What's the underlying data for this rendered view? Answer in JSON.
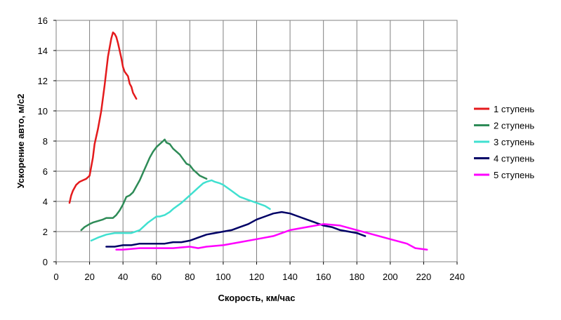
{
  "chart_data": {
    "type": "line",
    "xlabel": "Скорость, км/час",
    "ylabel": "Ускорение авто, м/с2",
    "xlim": [
      0,
      240
    ],
    "ylim": [
      0,
      16
    ],
    "xticks": [
      0,
      20,
      40,
      60,
      80,
      100,
      120,
      140,
      160,
      180,
      200,
      220,
      240
    ],
    "yticks": [
      0,
      2,
      4,
      6,
      8,
      10,
      12,
      14,
      16
    ],
    "grid": true,
    "legend_position": "right",
    "series": [
      {
        "name": "1 ступень",
        "color": "#e41a1c",
        "x": [
          8,
          9,
          10,
          12,
          14,
          16,
          18,
          20,
          22,
          23,
          25,
          27,
          29,
          31,
          33,
          34,
          35,
          36,
          37,
          38,
          39,
          40,
          41,
          43,
          44,
          45,
          46,
          47,
          48
        ],
        "y": [
          3.9,
          4.4,
          4.7,
          5.1,
          5.3,
          5.4,
          5.5,
          5.7,
          6.9,
          7.8,
          8.8,
          10.0,
          11.7,
          13.6,
          14.8,
          15.2,
          15.1,
          14.9,
          14.5,
          14.0,
          13.5,
          12.9,
          12.6,
          12.3,
          11.8,
          11.6,
          11.2,
          11.0,
          10.8
        ]
      },
      {
        "name": "2 ступень",
        "color": "#2e8b57",
        "x": [
          15,
          17,
          20,
          22,
          25,
          28,
          30,
          32,
          34,
          36,
          38,
          40,
          42,
          44,
          46,
          48,
          50,
          52,
          54,
          56,
          58,
          60,
          62,
          64,
          65,
          66,
          68,
          70,
          72,
          74,
          76,
          78,
          80,
          82,
          84,
          86,
          88,
          90
        ],
        "y": [
          2.1,
          2.3,
          2.5,
          2.6,
          2.7,
          2.8,
          2.9,
          2.9,
          2.9,
          3.1,
          3.4,
          3.8,
          4.3,
          4.4,
          4.6,
          5.0,
          5.4,
          5.9,
          6.4,
          6.9,
          7.3,
          7.6,
          7.8,
          8.0,
          8.1,
          7.9,
          7.8,
          7.5,
          7.3,
          7.1,
          6.8,
          6.5,
          6.4,
          6.1,
          5.9,
          5.7,
          5.6,
          5.5
        ]
      },
      {
        "name": "3 ступень",
        "color": "#40e0d0",
        "x": [
          21,
          25,
          30,
          35,
          40,
          45,
          50,
          55,
          60,
          62,
          65,
          68,
          70,
          75,
          80,
          85,
          88,
          90,
          93,
          95,
          98,
          100,
          105,
          110,
          115,
          120,
          125,
          128
        ],
        "y": [
          1.4,
          1.6,
          1.8,
          1.9,
          1.9,
          1.9,
          2.1,
          2.6,
          3.0,
          3.0,
          3.1,
          3.3,
          3.5,
          3.9,
          4.4,
          4.9,
          5.2,
          5.3,
          5.4,
          5.3,
          5.2,
          5.1,
          4.7,
          4.3,
          4.1,
          3.9,
          3.7,
          3.5
        ]
      },
      {
        "name": "4 ступень",
        "color": "#000066",
        "x": [
          30,
          35,
          40,
          45,
          50,
          55,
          60,
          65,
          70,
          75,
          80,
          85,
          90,
          95,
          100,
          105,
          110,
          115,
          120,
          125,
          130,
          135,
          140,
          145,
          150,
          155,
          160,
          165,
          170,
          175,
          180,
          185
        ],
        "y": [
          1.0,
          1.0,
          1.1,
          1.1,
          1.2,
          1.2,
          1.2,
          1.2,
          1.3,
          1.3,
          1.4,
          1.6,
          1.8,
          1.9,
          2.0,
          2.1,
          2.3,
          2.5,
          2.8,
          3.0,
          3.2,
          3.3,
          3.2,
          3.0,
          2.8,
          2.6,
          2.4,
          2.3,
          2.1,
          2.0,
          1.9,
          1.7
        ]
      },
      {
        "name": "5 ступень",
        "color": "#ff00ff",
        "x": [
          36,
          40,
          50,
          60,
          70,
          80,
          85,
          90,
          100,
          110,
          120,
          130,
          140,
          150,
          160,
          170,
          180,
          190,
          200,
          210,
          215,
          222
        ],
        "y": [
          0.8,
          0.8,
          0.9,
          0.9,
          0.9,
          1.0,
          0.9,
          1.0,
          1.1,
          1.3,
          1.5,
          1.7,
          2.1,
          2.3,
          2.5,
          2.4,
          2.1,
          1.8,
          1.5,
          1.2,
          0.9,
          0.8
        ]
      }
    ]
  }
}
